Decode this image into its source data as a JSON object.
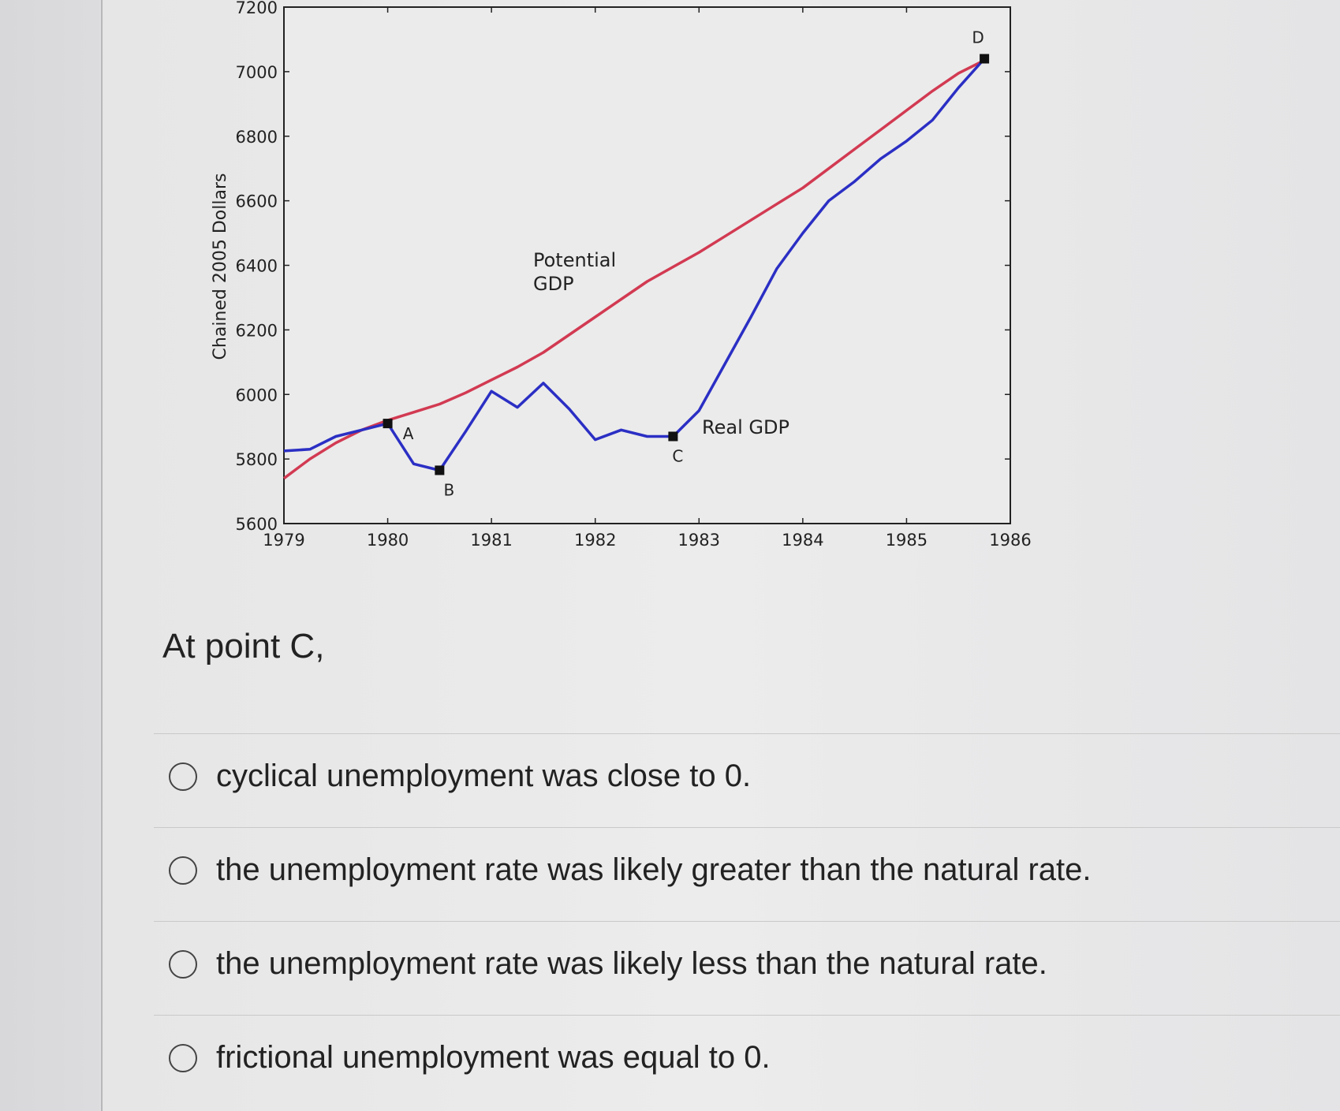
{
  "chart_data": {
    "type": "line",
    "ylabel": "Chained 2005 Dollars",
    "x": [
      1979,
      1979.25,
      1979.5,
      1979.75,
      1980,
      1980.25,
      1980.5,
      1980.75,
      1981,
      1981.25,
      1981.5,
      1981.75,
      1982,
      1982.25,
      1982.5,
      1982.75,
      1983,
      1983.25,
      1983.5,
      1983.75,
      1984,
      1984.25,
      1984.5,
      1984.75,
      1985,
      1985.25,
      1985.5,
      1985.75,
      1986
    ],
    "series": [
      {
        "name": "Real GDP",
        "color": "#2b2fc4",
        "values": [
          5825,
          5830,
          5870,
          5890,
          5910,
          5785,
          5765,
          5885,
          6010,
          5960,
          6035,
          5955,
          5860,
          5890,
          5870,
          5870,
          5950,
          6095,
          6240,
          6390,
          6500,
          6600,
          6660,
          6730,
          6785,
          6850,
          6950,
          7040,
          null
        ]
      },
      {
        "name": "Potential GDP",
        "color": "#d23a52",
        "values": [
          5740,
          5800,
          5850,
          5890,
          5920,
          5945,
          5970,
          6005,
          6045,
          6085,
          6130,
          6185,
          6240,
          6295,
          6350,
          6395,
          6440,
          6490,
          6540,
          6590,
          6640,
          6700,
          6760,
          6820,
          6880,
          6940,
          6995,
          7035,
          null
        ]
      }
    ],
    "annotations": [
      {
        "text": "A",
        "x": 1980,
        "y": 5910
      },
      {
        "text": "B",
        "x": 1980.5,
        "y": 5765
      },
      {
        "text": "C",
        "x": 1982.75,
        "y": 5870
      },
      {
        "text": "D",
        "x": 1985.75,
        "y": 7040
      }
    ],
    "xlim": [
      1979,
      1986
    ],
    "xticks": [
      1979,
      1980,
      1981,
      1982,
      1983,
      1984,
      1985,
      1986
    ],
    "ylim": [
      5600,
      7200
    ],
    "yticks": [
      5600,
      5800,
      6000,
      6200,
      6400,
      6600,
      6800,
      7000,
      7200
    ],
    "grid": false
  },
  "question": "At point C,",
  "options": [
    "cyclical unemployment was close to 0.",
    "the unemployment rate was likely greater than the natural rate.",
    "the unemployment rate was likely less than the natural rate.",
    "frictional unemployment was equal to 0."
  ]
}
